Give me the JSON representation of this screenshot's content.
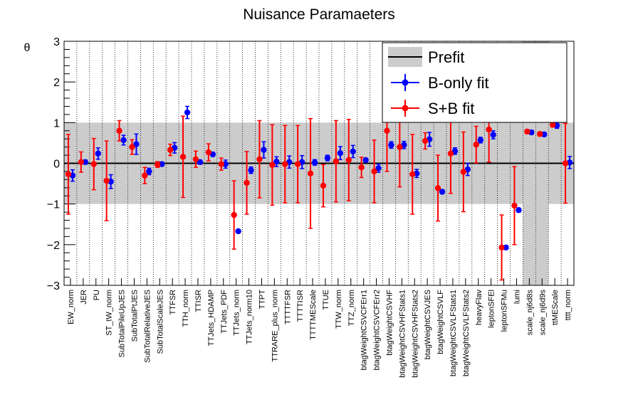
{
  "chart_data": {
    "type": "scatter",
    "title": "Nuisance Paramaeters",
    "ylabel": "θ",
    "xlabel": "",
    "ylim": [
      -3,
      3
    ],
    "yticks": [
      3,
      2,
      1,
      0,
      -1,
      -2,
      -3
    ],
    "ytick_labels": [
      "3",
      "2",
      "1",
      "0",
      "−1",
      "−2",
      "−3"
    ],
    "grid": "vertical dotted",
    "legend_placement": "top-right",
    "colors": {
      "prefit_band": "#cccccc",
      "prefit_line": "#000000",
      "b_only": "#0000ff",
      "s_plus_b": "#ff0000"
    },
    "legend": [
      {
        "name": "Prefit",
        "style": "band"
      },
      {
        "name": "B-only fit",
        "style": "point"
      },
      {
        "name": "S+B fit",
        "style": "point"
      }
    ],
    "categories": [
      "EW_norm",
      "JER",
      "PU",
      "ST_tW_norm",
      "SubTotalPileUpJES",
      "SubTotalPtJES",
      "SubTotalRelativeJES",
      "SubTotalScaleJES",
      "TTFSR",
      "TTH_norm",
      "TTISR",
      "TTJets_HDAMP",
      "TTJets_PDF",
      "TTJets_norm",
      "TTJets_norm10",
      "TTPT",
      "TTRARE_plus_norm",
      "TTTTFSR",
      "TTTTISR",
      "TTTTMEScale",
      "TTUE",
      "TTW_norm",
      "TTZ_norm",
      "btagWeightCSVCFErr1",
      "btagWeightCSVCFErr2",
      "btagWeightCSVHF",
      "btagWeightCSVHFStats1",
      "btagWeightCSVHFStats2",
      "btagWeightCSVJES",
      "btagWeightCSVLF",
      "btagWeightCSVLFStats1",
      "btagWeightCSVLFStats2",
      "heavyFlav",
      "leptonSFEl",
      "leptonSFMu",
      "lumi",
      "scale_nj6d8s",
      "scale_nj6d9s",
      "ttMEScale",
      "tttt_norm"
    ],
    "prefit_band_override": [
      {
        "category": "scale_nj6d8s",
        "range": [
          -3,
          3
        ]
      },
      {
        "category": "scale_nj6d9s",
        "range": [
          -3,
          3
        ]
      }
    ],
    "series": [
      {
        "name": "B-only fit",
        "values": [
          -0.3,
          0.03,
          0.24,
          -0.45,
          0.57,
          0.47,
          -0.2,
          -0.02,
          0.38,
          1.25,
          0.03,
          0.22,
          -0.02,
          -1.67,
          -0.17,
          0.33,
          0.04,
          0.03,
          0.03,
          0.02,
          0.13,
          0.25,
          0.29,
          0.08,
          -0.12,
          0.45,
          0.45,
          -0.25,
          0.59,
          -0.7,
          0.3,
          -0.15,
          0.57,
          0.7,
          -2.07,
          -1.15,
          0.76,
          0.71,
          0.93,
          0.02
        ],
        "err": [
          0.14,
          0.05,
          0.14,
          0.17,
          0.12,
          0.25,
          0.08,
          0.05,
          0.13,
          0.15,
          0.05,
          0.05,
          0.1,
          0.04,
          0.08,
          0.2,
          0.12,
          0.15,
          0.16,
          0.07,
          0.07,
          0.16,
          0.15,
          0.04,
          0.1,
          0.08,
          0.09,
          0.1,
          0.17,
          0.05,
          0.08,
          0.15,
          0.07,
          0.1,
          0.05,
          0.05,
          0.05,
          0.05,
          0.07,
          0.15
        ]
      },
      {
        "name": "S+B fit",
        "values": [
          -0.27,
          0.03,
          -0.02,
          -0.43,
          0.8,
          0.4,
          -0.3,
          -0.03,
          0.33,
          0.16,
          0.1,
          0.27,
          -0.02,
          -1.27,
          -0.48,
          0.1,
          -0.04,
          -0.02,
          -0.02,
          -0.25,
          -0.55,
          0.05,
          0.08,
          -0.1,
          -0.2,
          0.8,
          0.4,
          -0.27,
          0.55,
          -0.61,
          0.24,
          -0.21,
          0.46,
          0.83,
          -2.07,
          -1.04,
          0.78,
          0.72,
          0.95,
          0.0
        ],
        "err": [
          0.98,
          0.25,
          0.63,
          0.98,
          0.25,
          0.18,
          0.2,
          0.07,
          0.14,
          1.0,
          0.2,
          0.21,
          0.15,
          0.84,
          0.77,
          0.95,
          0.99,
          0.95,
          0.95,
          1.35,
          0.52,
          1.0,
          1.0,
          0.25,
          0.77,
          1.0,
          0.98,
          0.98,
          0.2,
          0.81,
          0.98,
          0.98,
          0.45,
          0.8,
          0.8,
          0.96,
          0.05,
          0.05,
          0.06,
          0.98
        ]
      }
    ]
  }
}
